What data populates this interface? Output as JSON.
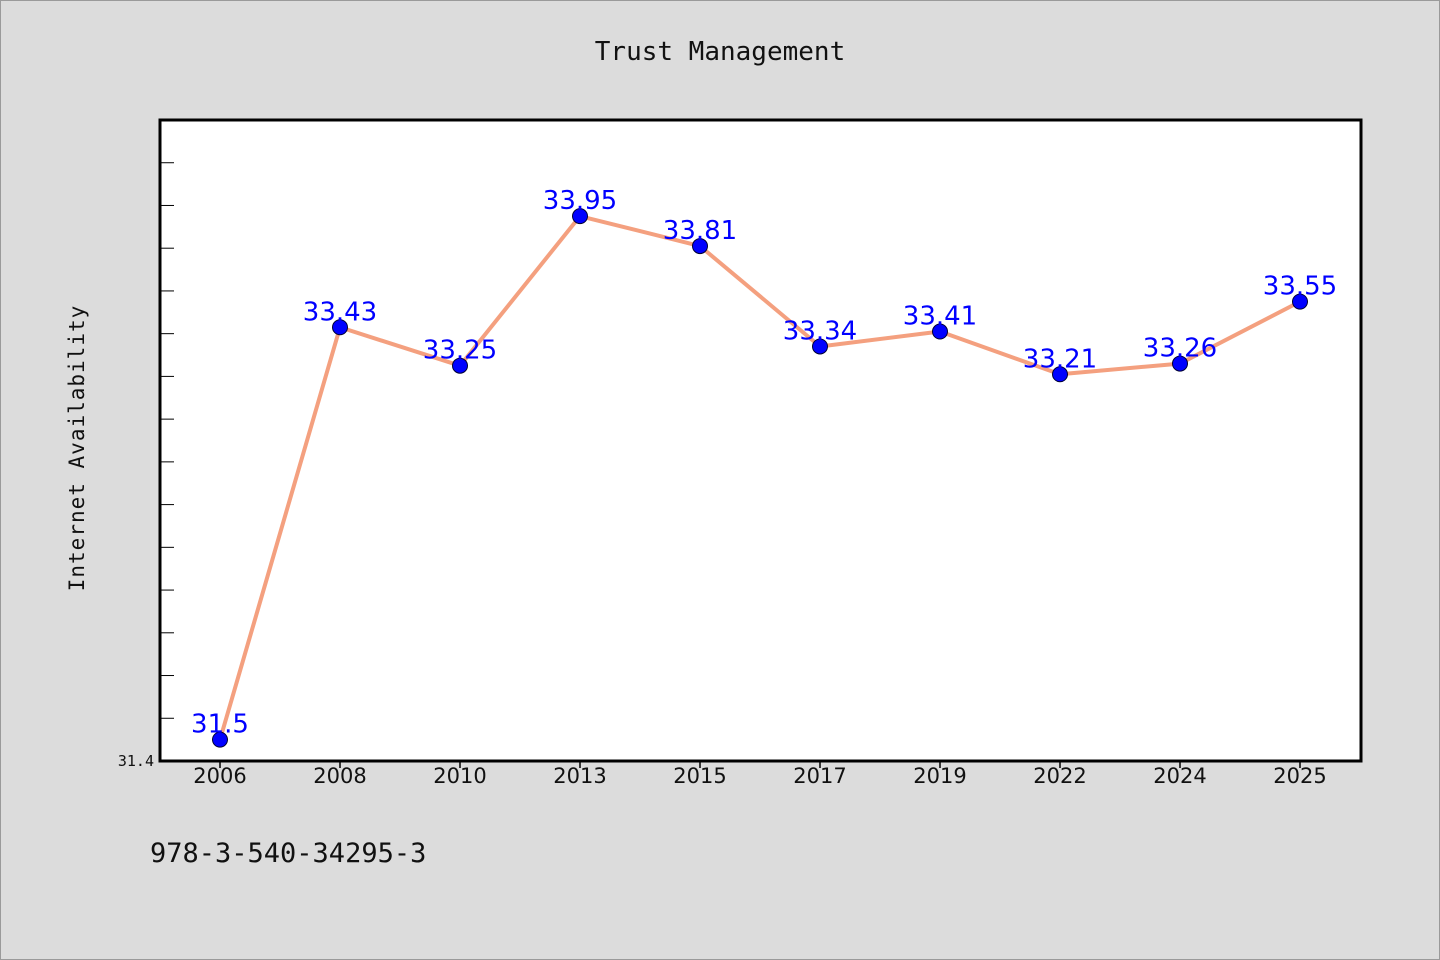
{
  "chart_data": {
    "type": "line",
    "title": "Trust Management",
    "ylabel": "Internet Availability",
    "xlabel": "",
    "categories": [
      "2006",
      "2008",
      "2010",
      "2013",
      "2015",
      "2017",
      "2019",
      "2022",
      "2024",
      "2025"
    ],
    "series": [
      {
        "values": [
          31.5,
          33.43,
          33.25,
          33.95,
          33.81,
          33.34,
          33.41,
          33.21,
          33.26,
          33.55
        ],
        "data_labels": [
          "31.5",
          "33.43",
          "33.25",
          "33.95",
          "33.81",
          "33.34",
          "33.41",
          "33.21",
          "33.26",
          "33.55"
        ]
      }
    ],
    "y_tick_labels": [
      "31.4"
    ],
    "ylim": [
      31.4,
      34.4
    ],
    "grid": false,
    "colors": {
      "line": "#f4a07f",
      "marker": "#0000ff",
      "label": "#0000ff",
      "background": "#dcdcdc",
      "plot_background": "#ffffff"
    }
  },
  "footer": {
    "text": "978-3-540-34295-3"
  }
}
